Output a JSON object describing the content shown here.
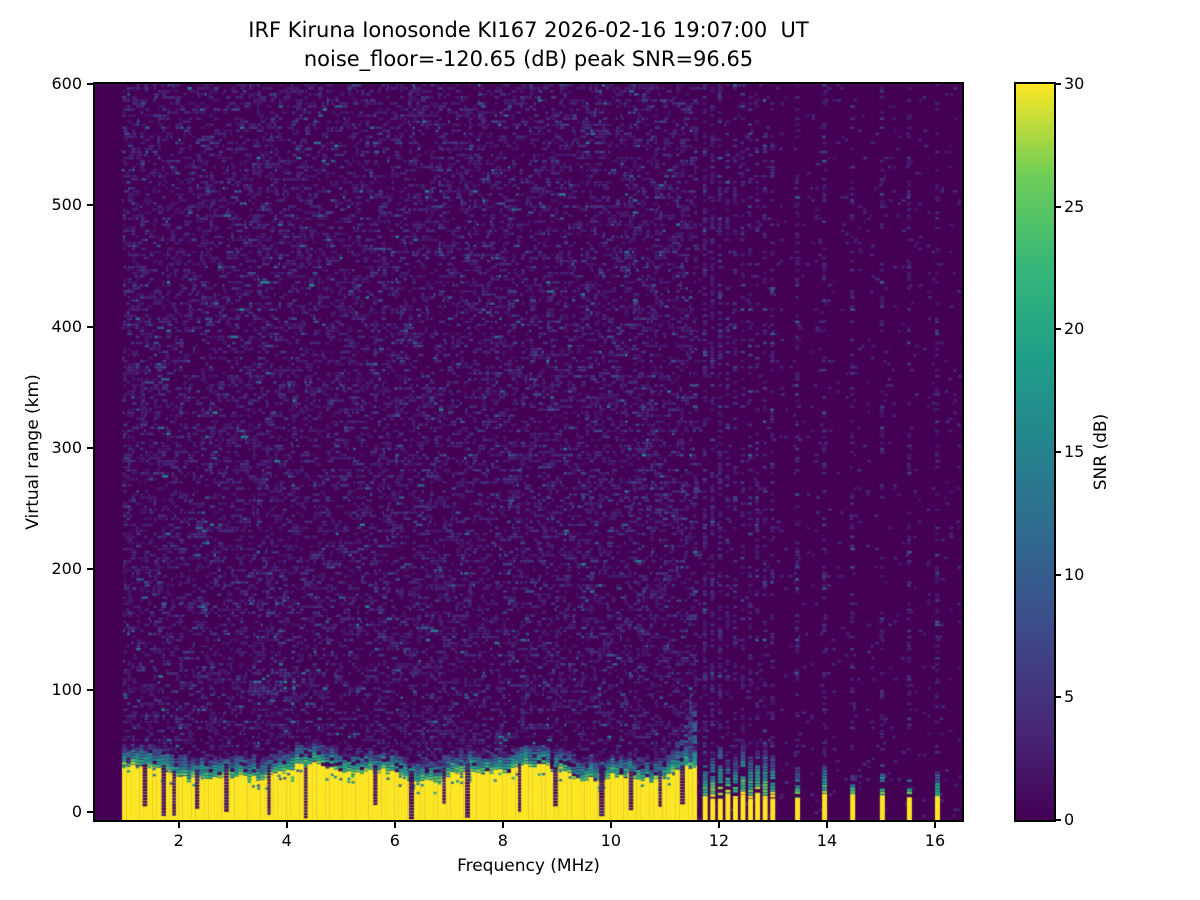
{
  "chart_data": {
    "type": "heatmap",
    "title": "IRF Kiruna Ionosonde KI167 2026-02-16 19:07:00  UT",
    "subtitle": "noise_floor=-120.65 (dB) peak SNR=96.65",
    "xlabel": "Frequency (MHz)",
    "ylabel": "Virtual range (km)",
    "xlim": [
      0.45,
      16.5
    ],
    "ylim": [
      -7,
      600
    ],
    "xticks": [
      2,
      4,
      6,
      8,
      10,
      12,
      14,
      16
    ],
    "yticks": [
      0,
      100,
      200,
      300,
      400,
      500,
      600
    ],
    "grid": false,
    "colorbar": {
      "label": "SNR (dB)",
      "min": 0,
      "max": 30,
      "ticks": [
        0,
        5,
        10,
        15,
        20,
        25,
        30
      ]
    },
    "colormap": {
      "name": "viridis",
      "stops": [
        [
          0.0,
          [
            68,
            1,
            84
          ]
        ],
        [
          0.125,
          [
            72,
            40,
            120
          ]
        ],
        [
          0.25,
          [
            62,
            73,
            137
          ]
        ],
        [
          0.375,
          [
            49,
            104,
            142
          ]
        ],
        [
          0.5,
          [
            38,
            130,
            142
          ]
        ],
        [
          0.625,
          [
            31,
            158,
            137
          ]
        ],
        [
          0.75,
          [
            53,
            183,
            121
          ]
        ],
        [
          0.875,
          [
            110,
            206,
            88
          ]
        ],
        [
          1.0,
          [
            253,
            231,
            37
          ]
        ]
      ]
    },
    "content": {
      "seed": 20260216,
      "sweep": {
        "f_start": 0.95,
        "f_end": 11.55,
        "f_step": 0.08,
        "row_km": 2.5
      },
      "ground_band": {
        "top_km_base": 29,
        "transition_km": 18
      },
      "cusp": {
        "f_start": 10.65,
        "max_extra_km": 48
      },
      "streak": {
        "f": 11.45,
        "km_lo": 38,
        "km_hi": 98
      },
      "notches": [
        1.35,
        1.7,
        1.9,
        2.32,
        2.86,
        3.66,
        4.34,
        5.62,
        6.28,
        6.9,
        7.32,
        8.3,
        8.95,
        9.8,
        10.35,
        10.9,
        11.3
      ],
      "deep_notches": [
        1.7,
        1.9,
        3.66,
        4.34,
        6.28,
        7.32,
        9.8
      ],
      "discrete_dense": [
        11.7,
        11.84,
        11.98,
        12.12,
        12.26,
        12.4,
        12.54,
        12.67,
        12.81,
        12.95
      ],
      "discrete_sparse": [
        13.41,
        13.91,
        14.43,
        14.98,
        15.48,
        16.0
      ],
      "echo": {
        "f_lo": 3.3,
        "f_hi": 4.15,
        "km_lo": 98,
        "km_hi": 118,
        "peaks": [
          [
            3.45,
            109
          ],
          [
            4.02,
            106
          ]
        ]
      },
      "noise": {
        "sweep_density": 0.48,
        "left_boost_f": 1.25,
        "bg_density_right": 0.05,
        "col_density_dense": 0.5,
        "col_density_sparse": 0.3
      }
    }
  }
}
